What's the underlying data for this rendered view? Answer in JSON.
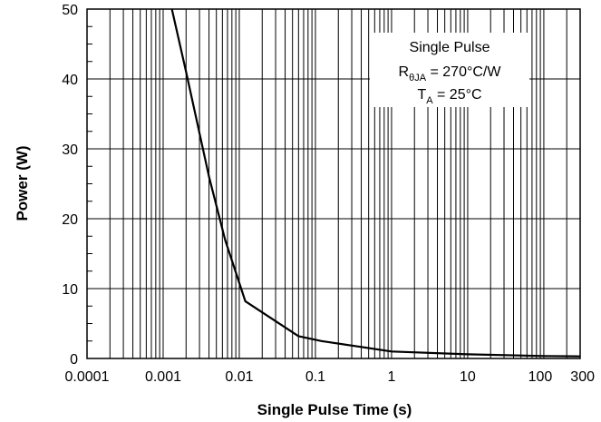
{
  "chart_data": {
    "type": "line",
    "title": "",
    "xlabel": "Single Pulse Time (s)",
    "ylabel": "Power (W)",
    "xscale": "log",
    "xlim": [
      0.0001,
      300
    ],
    "ylim": [
      0,
      50
    ],
    "grid": true,
    "x_tick_labels": [
      "0.0001",
      "0.001",
      "0.01",
      "0.1",
      "1",
      "10",
      "100",
      "300"
    ],
    "x_ticks": [
      0.0001,
      0.001,
      0.01,
      0.1,
      1,
      10,
      100,
      300
    ],
    "y_ticks": [
      0,
      10,
      20,
      30,
      40,
      50
    ],
    "y_tick_labels": [
      "0",
      "10",
      "20",
      "30",
      "40",
      "50"
    ],
    "series": [
      {
        "x": [
          0.0013,
          0.002,
          0.004,
          0.0065,
          0.012,
          0.06,
          0.12,
          1,
          10,
          100,
          300
        ],
        "y": [
          50,
          41,
          26,
          17,
          8.2,
          3.2,
          2.5,
          1.0,
          0.6,
          0.35,
          0.3
        ]
      }
    ],
    "annotation": {
      "line1": "Single Pulse",
      "line2_main": "R",
      "line2_sub": "θJA",
      "line2_rest": " = 270°C/W",
      "line3_main": "T",
      "line3_sub": "A",
      "line3_rest": " = 25°C"
    }
  }
}
